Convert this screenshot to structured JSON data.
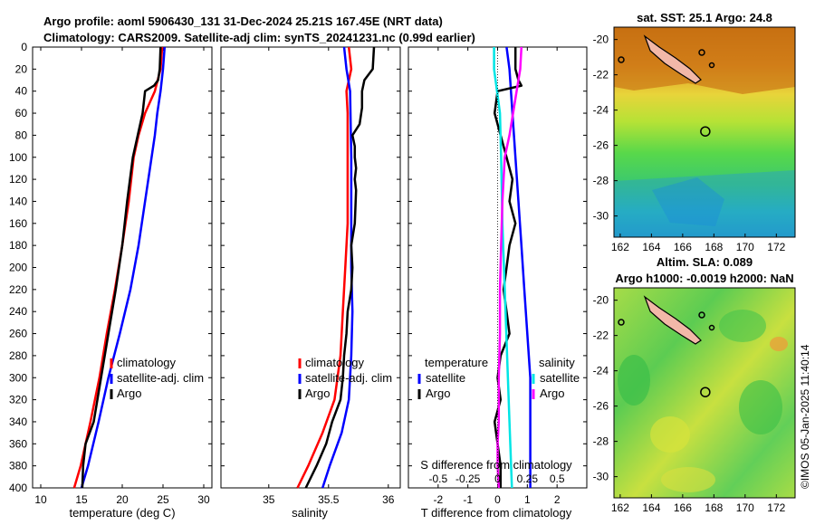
{
  "title": {
    "line1": "Argo profile: aoml 5906430_131 31-Dec-2024 25.21S 167.45E (NRT data)",
    "line2": "Climatology: CARS2009. Satellite-adj clim: synTS_20241231.nc (0.99d earlier)"
  },
  "colors": {
    "climatology": "#ff0000",
    "satellite": "#0000ff",
    "argo": "#000000",
    "sal_sat": "#00e5e5",
    "sal_argo": "#ff00ff"
  },
  "depth_ticks": [
    "0",
    "20",
    "40",
    "60",
    "80",
    "100",
    "120",
    "140",
    "160",
    "180",
    "200",
    "220",
    "240",
    "260",
    "280",
    "300",
    "320",
    "340",
    "360",
    "380",
    "400"
  ],
  "chart_data": [
    {
      "type": "line",
      "id": "temperature",
      "xlabel": "temperature (deg C)",
      "ylabel": "depth",
      "xlim": [
        9,
        31
      ],
      "ylim": [
        0,
        400
      ],
      "y_reversed": true,
      "xticks": [
        "10",
        "15",
        "20",
        "25",
        "30"
      ],
      "legend": [
        "climatology",
        "satellite-adj. clim",
        "Argo"
      ],
      "legend_position": "lower-right",
      "series": [
        {
          "name": "climatology",
          "depth": [
            0,
            20,
            40,
            60,
            80,
            100,
            140,
            180,
            220,
            260,
            300,
            340,
            380,
            400
          ],
          "values": [
            24.9,
            24.7,
            24.0,
            22.8,
            22.0,
            21.4,
            20.8,
            20.0,
            19.1,
            18.1,
            17.2,
            16.1,
            14.9,
            14.1
          ]
        },
        {
          "name": "satellite-adj. clim",
          "depth": [
            0,
            20,
            40,
            60,
            80,
            100,
            140,
            180,
            220,
            260,
            300,
            340,
            380,
            400
          ],
          "values": [
            25.2,
            25.0,
            24.7,
            24.3,
            24.0,
            23.6,
            22.8,
            22.0,
            21.0,
            19.7,
            18.3,
            17.1,
            15.8,
            15.0
          ]
        },
        {
          "name": "Argo",
          "depth": [
            0,
            20,
            30,
            35,
            40,
            60,
            80,
            100,
            140,
            180,
            220,
            260,
            300,
            340,
            360,
            380,
            400
          ],
          "values": [
            24.7,
            24.6,
            24.4,
            23.9,
            22.8,
            22.5,
            21.9,
            21.3,
            20.6,
            20.0,
            19.2,
            18.3,
            17.4,
            16.5,
            15.5,
            15.2,
            15.1
          ]
        }
      ]
    },
    {
      "type": "line",
      "id": "salinity",
      "xlabel": "salinity",
      "ylabel": "depth",
      "xlim": [
        34.6,
        36.1
      ],
      "ylim": [
        0,
        400
      ],
      "y_reversed": true,
      "xticks": [
        "35",
        "35.5",
        "36"
      ],
      "legend": [
        "climatology",
        "satellite-adj. clim",
        "Argo"
      ],
      "legend_position": "lower-right",
      "series": [
        {
          "name": "climatology",
          "depth": [
            0,
            20,
            40,
            60,
            100,
            160,
            200,
            240,
            280,
            320,
            350,
            380,
            400
          ],
          "values": [
            35.67,
            35.69,
            35.65,
            35.66,
            35.66,
            35.66,
            35.64,
            35.62,
            35.6,
            35.55,
            35.45,
            35.33,
            35.24
          ]
        },
        {
          "name": "satellite-adj. clim",
          "depth": [
            0,
            20,
            40,
            100,
            160,
            200,
            240,
            280,
            320,
            350,
            380,
            400
          ],
          "values": [
            35.63,
            35.65,
            35.68,
            35.69,
            35.69,
            35.69,
            35.7,
            35.69,
            35.67,
            35.61,
            35.51,
            35.45
          ]
        },
        {
          "name": "Argo",
          "depth": [
            0,
            20,
            30,
            40,
            55,
            70,
            80,
            90,
            100,
            110,
            120,
            130,
            160,
            180,
            200,
            220,
            240,
            260,
            280,
            300,
            320,
            340,
            360,
            380,
            400
          ],
          "values": [
            35.88,
            35.87,
            35.8,
            35.78,
            35.78,
            35.76,
            35.7,
            35.72,
            35.72,
            35.73,
            35.72,
            35.73,
            35.72,
            35.69,
            35.7,
            35.69,
            35.66,
            35.65,
            35.63,
            35.62,
            35.6,
            35.53,
            35.48,
            35.4,
            35.31
          ]
        }
      ]
    },
    {
      "type": "line",
      "id": "difference",
      "xlabel": "T difference from climatology",
      "xlabel_top": "S difference from climatology",
      "ylabel": "depth",
      "xlim": [
        -3,
        3
      ],
      "ylim": [
        0,
        400
      ],
      "y_reversed": true,
      "xticks": [
        "-2",
        "-1",
        "0",
        "1",
        "2"
      ],
      "xticks_top": [
        "-0.5",
        "-0.25",
        "0",
        "0.25",
        "0.5"
      ],
      "legend_temperature_title": "temperature",
      "legend_salinity_title": "salinity",
      "legend_temperature": [
        "satellite",
        "Argo"
      ],
      "legend_salinity": [
        "satellite",
        "Argo"
      ],
      "series": [
        {
          "name": "T satellite",
          "depth": [
            0,
            20,
            60,
            100,
            140,
            180,
            220,
            260,
            300,
            340,
            380,
            400
          ],
          "values": [
            0.3,
            0.4,
            0.5,
            0.6,
            0.7,
            0.8,
            0.9,
            1.0,
            1.1,
            1.1,
            1.1,
            1.1
          ]
        },
        {
          "name": "T Argo",
          "depth": [
            0,
            20,
            30,
            35,
            40,
            60,
            80,
            100,
            120,
            140,
            160,
            180,
            200,
            220,
            240,
            260,
            280,
            300,
            320,
            340,
            360,
            380,
            400
          ],
          "values": [
            0.6,
            0.6,
            0.7,
            0.8,
            0.0,
            -0.1,
            0.1,
            0.3,
            0.5,
            0.4,
            0.6,
            0.4,
            0.3,
            0.2,
            0.3,
            0.4,
            0.1,
            0.0,
            0.1,
            -0.1,
            0.0,
            0.1,
            0.1
          ]
        },
        {
          "name": "S satellite",
          "depth": [
            0,
            20,
            60,
            100,
            160,
            220,
            280,
            340,
            400
          ],
          "values": [
            -0.03,
            -0.03,
            0.02,
            0.03,
            0.04,
            0.06,
            0.08,
            0.1,
            0.12
          ]
        },
        {
          "name": "S Argo",
          "depth": [
            0,
            20,
            40,
            60,
            80,
            100,
            140,
            180,
            220,
            260,
            300,
            340,
            360,
            380,
            400
          ],
          "values": [
            0.2,
            0.19,
            0.16,
            0.13,
            0.1,
            0.06,
            0.04,
            0.03,
            0.02,
            0.02,
            0.01,
            0.01,
            0.0,
            0.0,
            0.01
          ]
        }
      ]
    },
    {
      "type": "heatmap",
      "id": "sst-map",
      "title": "sat. SST: 25.1 Argo: 24.8",
      "xticks": [
        "162",
        "164",
        "166",
        "168",
        "170",
        "172"
      ],
      "yticks": [
        "-20",
        "-22",
        "-24",
        "-26",
        "-28",
        "-30"
      ],
      "xlim": [
        161.6,
        173.2
      ],
      "ylim": [
        -31.2,
        -19.3
      ],
      "argo_position": [
        167.45,
        -25.21
      ]
    },
    {
      "type": "heatmap",
      "id": "sla-map",
      "title_line1": "Altim. SLA: 0.089",
      "title_line2": "Argo h1000: -0.0019 h2000: NaN",
      "xticks": [
        "162",
        "164",
        "166",
        "168",
        "170",
        "172"
      ],
      "yticks": [
        "-20",
        "-22",
        "-24",
        "-26",
        "-28",
        "-30"
      ],
      "xlim": [
        161.6,
        173.2
      ],
      "ylim": [
        -31.2,
        -19.3
      ],
      "argo_position": [
        167.45,
        -25.21
      ]
    }
  ],
  "credit": "©IMOS 05-Jan-2025 11:40:14"
}
